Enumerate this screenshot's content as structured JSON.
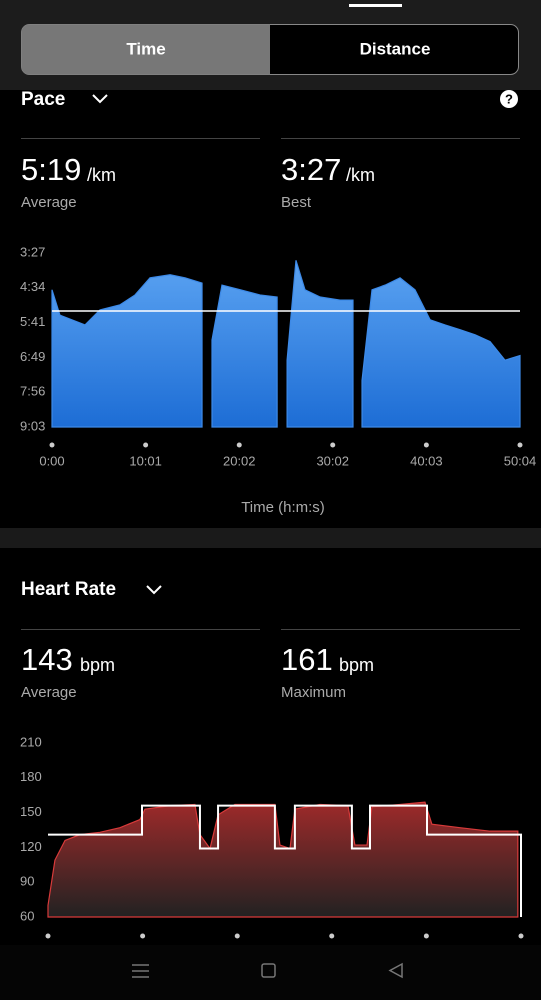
{
  "tabs": [
    "Time",
    "Distance"
  ],
  "help_icon": "?",
  "pace": {
    "title": "Pace",
    "average": {
      "value": 319,
      "label": "5:19",
      "unit": "/km",
      "caption": "Average"
    },
    "best": {
      "label": "3:27",
      "unit": "/km",
      "caption": "Best"
    }
  },
  "heart_rate": {
    "title": "Heart Rate",
    "average": {
      "value": 143,
      "unit": "bpm",
      "caption": "Average"
    },
    "maximum": {
      "value": 161,
      "unit": "bpm",
      "caption": "Maximum"
    }
  },
  "chart_data": [
    {
      "type": "area",
      "xlabel": "Time (h:m:s)",
      "color": "#3d8ae8",
      "x": [
        0,
        51,
        212,
        308,
        437,
        533,
        629,
        758,
        854,
        963,
        995,
        1027,
        1091,
        1207,
        1335,
        1445,
        1480,
        1509,
        1566,
        1624,
        1721,
        1849,
        1932,
        1960,
        1990,
        2054,
        2138,
        2234,
        2330,
        2427,
        2523,
        2619,
        2716,
        2812,
        2908,
        3004
      ],
      "values": [
        278,
        327,
        346,
        317,
        307,
        288,
        255,
        249,
        255,
        265,
        null,
        375,
        269,
        278,
        288,
        292,
        null,
        414,
        221,
        278,
        292,
        298,
        298,
        null,
        453,
        278,
        269,
        255,
        278,
        336,
        346,
        355,
        365,
        378,
        414,
        405
      ],
      "xlim": [
        0,
        3004
      ],
      "xticks": [
        {
          "value": 0,
          "label": "0:00"
        },
        {
          "value": 601,
          "label": "10:01"
        },
        {
          "value": 1202,
          "label": "20:02"
        },
        {
          "value": 1802,
          "label": "30:02"
        },
        {
          "value": 2403,
          "label": "40:03"
        },
        {
          "value": 3004,
          "label": "50:04"
        }
      ],
      "ylim": [
        543,
        207
      ],
      "yticks": [
        {
          "value": 207,
          "label": "3:27"
        },
        {
          "value": 274,
          "label": "4:34"
        },
        {
          "value": 341,
          "label": "5:41"
        },
        {
          "value": 409,
          "label": "6:49"
        },
        {
          "value": 476,
          "label": "7:56"
        },
        {
          "value": 543,
          "label": "9:03"
        }
      ]
    },
    {
      "type": "area",
      "series": [
        {
          "color": "#d83a3a",
          "x": [
            0,
            44,
            108,
            203,
            330,
            457,
            584,
            616,
            775,
            933,
            965,
            1029,
            1080,
            1187,
            1441,
            1473,
            1537,
            1568,
            1727,
            1905,
            1949,
            2026,
            2057,
            2235,
            2394,
            2438,
            2616,
            2807,
            2984
          ],
          "values": [
            70,
            109,
            126,
            131,
            133,
            137,
            144,
            153,
            156,
            157,
            131,
            119,
            148,
            157,
            157,
            122,
            119,
            153,
            157,
            156,
            122,
            122,
            155,
            157,
            159,
            140,
            137,
            134,
            134
          ]
        },
        {
          "color": "#ffffff",
          "x": [
            0,
            597,
            597,
            965,
            965,
            1080,
            1080,
            1441,
            1441,
            1568,
            1568,
            1930,
            1930,
            2045,
            2045,
            2407,
            2407,
            3004
          ],
          "values": [
            131,
            131,
            156,
            156,
            119,
            119,
            156,
            156,
            119,
            119,
            156,
            156,
            119,
            119,
            156,
            156,
            131,
            131
          ]
        }
      ],
      "xlim": [
        0,
        3004
      ],
      "xticks": [
        0,
        601,
        1202,
        1802,
        2403,
        3004
      ],
      "ylim": [
        60,
        210
      ],
      "yticks": [
        60,
        90,
        120,
        150,
        180,
        210
      ]
    }
  ]
}
